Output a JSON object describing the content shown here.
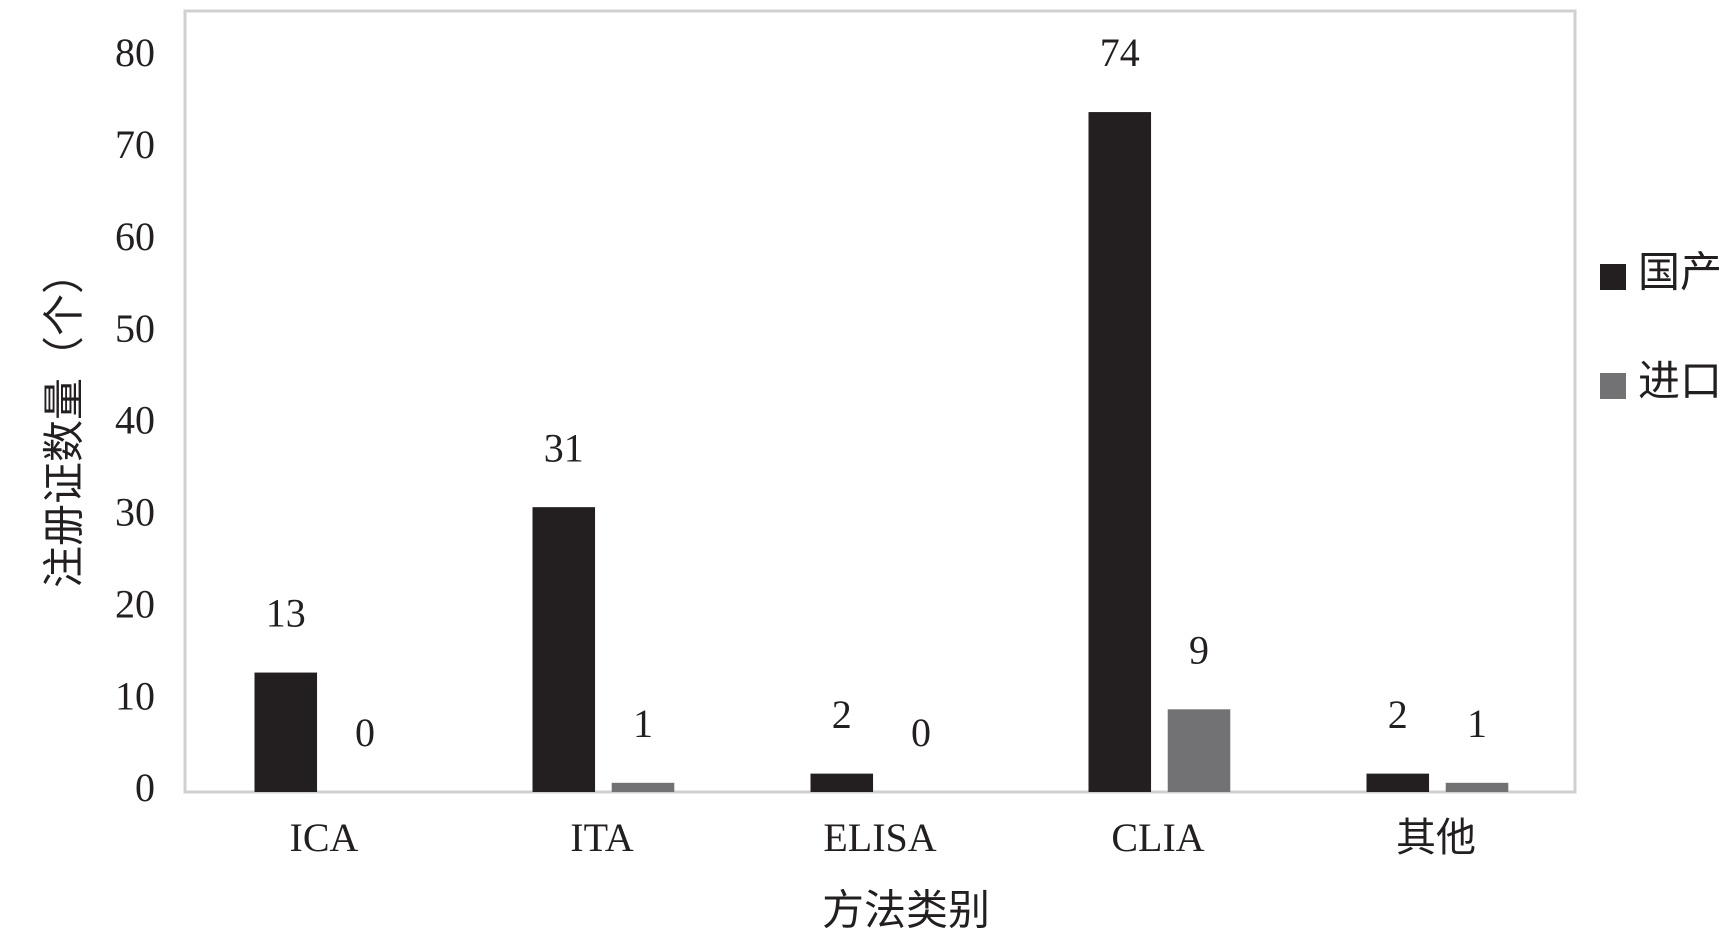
{
  "chart_data": {
    "type": "bar",
    "x_label": "方法类别",
    "y_label": "注册证数量（个）",
    "categories": [
      "ICA",
      "ITA",
      "ELISA",
      "CLIA",
      "其他"
    ],
    "series": [
      {
        "name": "国产",
        "color": "#231f20",
        "values": [
          13,
          31,
          2,
          74,
          2
        ]
      },
      {
        "name": "进口",
        "color": "#727174",
        "values": [
          0,
          1,
          0,
          9,
          1
        ]
      }
    ],
    "ylim": [
      0,
      85
    ],
    "yticks": [
      0,
      10,
      20,
      30,
      40,
      50,
      60,
      70,
      80
    ],
    "grid": false,
    "legend": "right"
  }
}
